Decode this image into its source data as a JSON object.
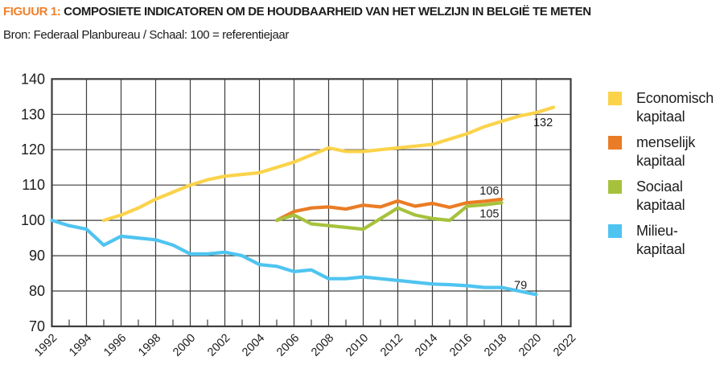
{
  "header": {
    "title_prefix": "FIGUUR 1:",
    "title_rest": " COMPOSIETE INDICATOREN OM DE HOUDBAARHEID VAN HET WELZIJN IN BELGIË TE METEN",
    "subtitle": "Bron: Federaal Planbureau / Schaal: 100 = referentiejaar"
  },
  "colors": {
    "accent_orange": "#F0812C",
    "grid": "#3d3d3c",
    "text": "#1c1c1c",
    "economisch": "#FBD34B",
    "menselijk": "#EA7C25",
    "sociaal": "#A6C23C",
    "milieu": "#4FC4F0"
  },
  "legend": {
    "position": "right",
    "items": [
      {
        "label": "Economisch\nkapitaal",
        "color": "#FBD34B"
      },
      {
        "label": "menselijk\nkapitaal",
        "color": "#EA7C25"
      },
      {
        "label": "Sociaal\nkapitaal",
        "color": "#A6C23C"
      },
      {
        "label": "Milieu-\nkapitaal",
        "color": "#4FC4F0"
      }
    ]
  },
  "chart_data": {
    "type": "line",
    "title": "FIGUUR 1: Composiete indicatoren om de houdbaarheid van het welzijn in België te meten",
    "subtitle": "Bron: Federaal Planbureau / Schaal: 100 = referentiejaar",
    "grid": true,
    "legend_position": "right",
    "x_axis": {
      "range": [
        1992,
        2022
      ],
      "tick_step_years": 2,
      "ticks": [
        1992,
        1994,
        1996,
        1998,
        2000,
        2002,
        2004,
        2006,
        2008,
        2010,
        2012,
        2014,
        2016,
        2018,
        2020,
        2022
      ]
    },
    "y_axis": {
      "range": [
        70,
        140
      ],
      "ticks": [
        70,
        80,
        90,
        100,
        110,
        120,
        130,
        140
      ],
      "note": "100 = referentiejaar"
    },
    "series": [
      {
        "name": "Economisch kapitaal",
        "color": "#FBD34B",
        "start_year": 1995,
        "values": [
          100,
          101.5,
          103.5,
          106,
          108,
          110,
          111.5,
          112.5,
          113,
          113.5,
          115,
          116.5,
          118.5,
          120.5,
          119.5,
          119.5,
          120,
          120.5,
          121,
          121.5,
          123,
          124.5,
          126.5,
          128,
          129.5,
          130.5,
          132
        ],
        "end_value_label": "132"
      },
      {
        "name": "menselijk kapitaal",
        "color": "#EA7C25",
        "start_year": 2005,
        "values": [
          100,
          102.5,
          103.5,
          103.8,
          103.2,
          104.3,
          103.8,
          105.5,
          104,
          104.8,
          103.7,
          105,
          105.4,
          106
        ],
        "end_value_label": "106"
      },
      {
        "name": "Sociaal kapitaal",
        "color": "#A6C23C",
        "start_year": 2005,
        "values": [
          100,
          101.5,
          99,
          98.5,
          98,
          97.5,
          100.5,
          103.5,
          101.5,
          100.5,
          100,
          104,
          104.4,
          105
        ],
        "end_value_label": "105"
      },
      {
        "name": "Milieu-kapitaal",
        "color": "#4FC4F0",
        "start_year": 1992,
        "values": [
          100,
          98.5,
          97.5,
          93,
          95.5,
          95,
          94.5,
          93,
          90.5,
          90.5,
          91,
          90,
          87.5,
          87,
          85.5,
          86,
          83.5,
          83.5,
          84,
          83.5,
          83,
          82.5,
          82,
          81.8,
          81.5,
          81,
          81,
          80,
          79
        ],
        "end_value_label": "79"
      }
    ],
    "annotations": [
      {
        "text": "132",
        "year": 2020.4,
        "value": 127.8
      },
      {
        "text": "106",
        "year": 2017.3,
        "value": 108.4
      },
      {
        "text": "105",
        "year": 2017.3,
        "value": 102.0
      },
      {
        "text": "79",
        "year": 2019.1,
        "value": 81.7
      }
    ]
  }
}
